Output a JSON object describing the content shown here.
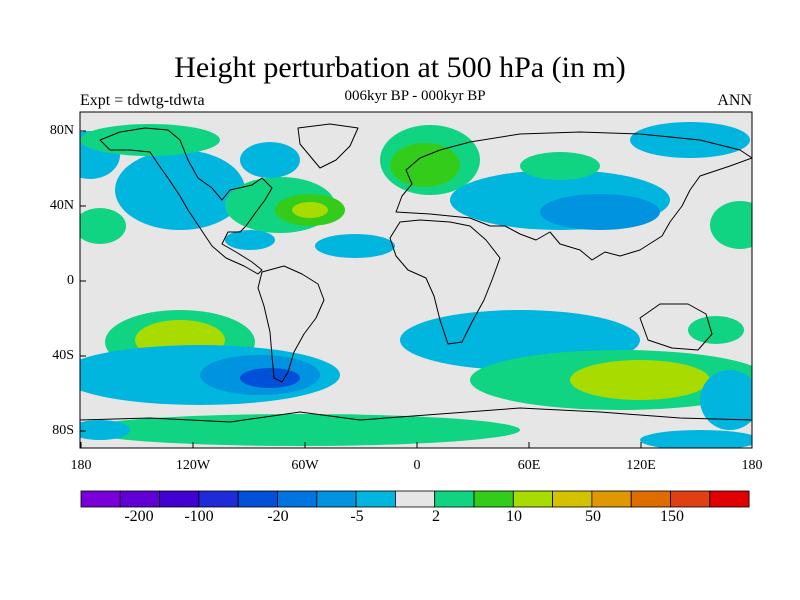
{
  "title": "Height perturbation at 500 hPa (in m)",
  "left_label": "Expt = tdwtg-tdwta",
  "center_label": "006kyr BP - 000kyr BP",
  "right_label": "ANN",
  "lat_ticks": [
    "80N",
    "40N",
    "0",
    "40S",
    "80S"
  ],
  "lon_ticks": [
    "180",
    "120W",
    "60W",
    "0",
    "60E",
    "120E",
    "180"
  ],
  "colorbar": {
    "colors": [
      "#7a00d9",
      "#6100d6",
      "#4300d2",
      "#1f2ad8",
      "#0050d9",
      "#0074df",
      "#0093df",
      "#00b5de",
      "#e6e6e6",
      "#10d482",
      "#33cc1a",
      "#a8dc00",
      "#d4c200",
      "#e09800",
      "#e06c00",
      "#e23e14",
      "#e00000"
    ],
    "labels": [
      "-200",
      "-100",
      "-20",
      "-5",
      "2",
      "10",
      "50",
      "150"
    ]
  },
  "palette": {
    "neutral": "#e6e6e6",
    "neg_weak": "#00b5de",
    "neg_mid": "#0093df",
    "neg_strong": "#0074df",
    "neg_stronger": "#0050d9",
    "pos_weak": "#10d482",
    "pos_mid": "#33cc1a",
    "pos_strong": "#a8dc00"
  }
}
